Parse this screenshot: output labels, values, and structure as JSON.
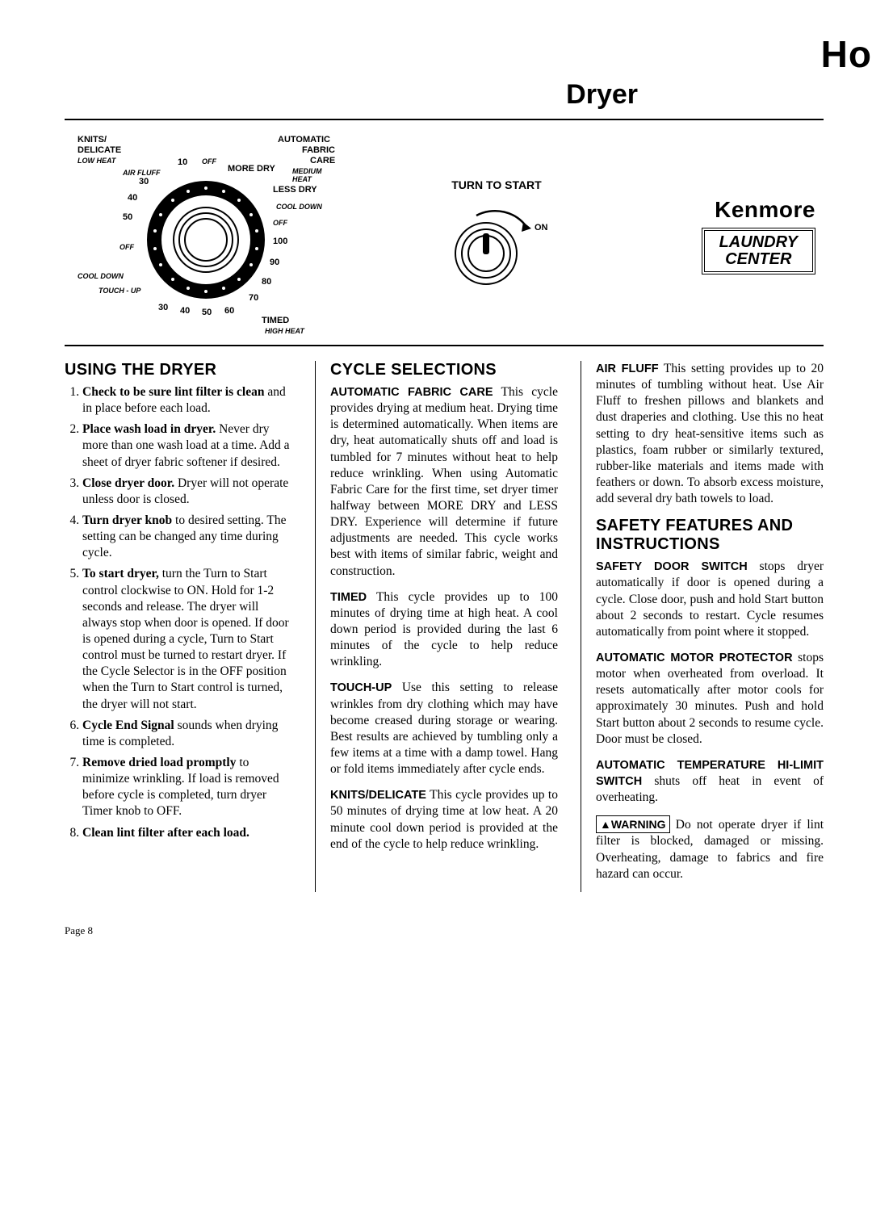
{
  "header": {
    "topRight": "Ho",
    "subtitle": "Dryer"
  },
  "panel": {
    "dial": {
      "topLeft1": "KNITS/",
      "topLeft2": "DELICATE",
      "lowHeat": "LOW HEAT",
      "airFluff": "AIR FLUFF",
      "offTop": "OFF",
      "n10": "10",
      "n30": "30",
      "n40l": "40",
      "n50l": "50",
      "offLeft": "OFF",
      "coolDownL": "COOL DOWN",
      "touchUp": "TOUCH - UP",
      "n30b": "30",
      "n40b": "40",
      "n50b": "50",
      "n60b": "60",
      "n70": "70",
      "n80": "80",
      "n90": "90",
      "n100": "100",
      "offR": "OFF",
      "coolDownR": "COOL DOWN",
      "lessDry": "LESS DRY",
      "moreDry": "MORE DRY",
      "auto1": "AUTOMATIC",
      "auto2": "FABRIC",
      "auto3": "CARE",
      "mediumHeat": "MEDIUM HEAT",
      "timed": "TIMED",
      "highHeat": "HIGH HEAT"
    },
    "turnToStart": "TURN TO START",
    "on": "ON",
    "brand": "Kenmore",
    "brandBox1": "LAUNDRY",
    "brandBox2": "CENTER"
  },
  "col1": {
    "heading": "USING THE DRYER",
    "items": [
      "<b>Check to be sure lint filter is clean</b> and in place before each load.",
      "<b>Place wash load in dryer.</b> Never dry more than one wash load at a time. Add a sheet of dryer fabric softener if desired.",
      "<b>Close dryer door.</b> Dryer will not operate unless door is closed.",
      "<b>Turn dryer knob</b> to desired setting. The setting can be changed any time during cycle.",
      "<b>To start dryer,</b> turn the Turn to Start control clockwise to ON. Hold for 1-2 seconds and release. The dryer will always stop when door is opened. If door is opened during a cycle, Turn to Start control must be turned to restart dryer. If the Cycle Selector is in the OFF position when the Turn to Start control is turned, the dryer will not start.",
      "<b>Cycle End Signal</b> sounds when drying time is completed.",
      "<b>Remove dried load promptly</b> to minimize wrinkling. If load is removed before cycle is completed, turn dryer Timer knob to OFF.",
      "<b>Clean lint filter after each load.</b>"
    ]
  },
  "col2": {
    "heading": "CYCLE SELECTIONS",
    "p1": "<span class='runin'>AUTOMATIC FABRIC CARE</span> This cycle provides drying at medium heat. Drying time is determined automatically. When items are dry, heat automatically shuts off and load is tumbled for 7 minutes without heat to help reduce wrinkling. When using Automatic Fabric Care for the first time, set dryer timer halfway between MORE DRY and LESS DRY. Experience will determine if future adjustments are needed. This cycle works best with items of similar fabric, weight and construction.",
    "p2": "<span class='runin'>TIMED</span> This cycle provides up to 100 minutes of drying time at high heat. A cool down period is provided during the last 6 minutes of the cycle to help reduce wrinkling.",
    "p3": "<span class='runin'>TOUCH-UP</span> Use this setting to release wrinkles from dry clothing which may have become creased during storage or wearing. Best results are achieved by tumbling only a few items at a time with a damp towel. Hang or fold items immediately after cycle ends.",
    "p4": "<span class='runin'>KNITS/DELICATE</span> This cycle provides up to 50 minutes of drying time at low heat. A 20 minute cool down period is provided at the end of the cycle to help reduce wrinkling."
  },
  "col3": {
    "p1": "<span class='runin'>AIR FLUFF</span> This setting provides up to 20 minutes of tumbling without heat. Use Air Fluff to freshen pillows and blankets and dust draperies and clothing. Use this no heat setting to dry heat-sensitive items such as plastics, foam rubber or similarly textured, rubber-like materials and items made with feathers or down. To absorb excess moisture, add several dry bath towels to load.",
    "heading2": "SAFETY FEATURES AND INSTRUCTIONS",
    "p2": "<span class='runin'>SAFETY DOOR SWITCH</span> stops dryer automatically if door is opened during a cycle. Close door, push and hold Start button about 2 seconds to restart. Cycle resumes automatically from point where it stopped.",
    "p3": "<span class='runin'>AUTOMATIC MOTOR PRO­TECTOR</span> stops motor when over­heated from overload. It resets automatically after motor cools for approximately 30 minutes. Push and hold Start button about 2 seconds to resume cycle. Door must be closed.",
    "p4": "<span class='runin'>AUTOMATIC TEMPERATURE HI-LIMIT SWITCH</span> shuts off heat in event of overheating.",
    "warnLabel": "▲WARNING",
    "p5": "Do not operate dryer if lint filter is blocked, damaged or missing. Overheating, damage to fabrics and fire hazard can occur."
  },
  "pageNum": "Page 8"
}
